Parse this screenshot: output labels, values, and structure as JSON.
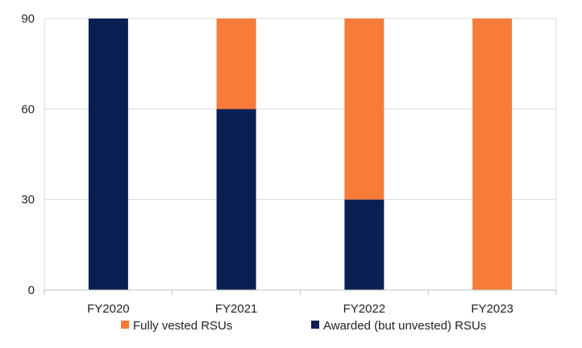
{
  "chart_data": {
    "type": "bar",
    "stacked": true,
    "categories": [
      "FY2020",
      "FY2021",
      "FY2022",
      "FY2023"
    ],
    "series": [
      {
        "name": "Awarded (but unvested) RSUs",
        "color": "#0c1f55",
        "values": [
          90,
          60,
          30,
          0
        ]
      },
      {
        "name": "Fully vested RSUs",
        "color": "#f77c3a",
        "values": [
          0,
          30,
          60,
          90
        ]
      }
    ],
    "yticks": [
      0,
      30,
      60,
      90
    ],
    "ylim": [
      0,
      90
    ],
    "grid": true,
    "legend_position": "bottom",
    "legend_order": [
      1,
      0
    ]
  }
}
